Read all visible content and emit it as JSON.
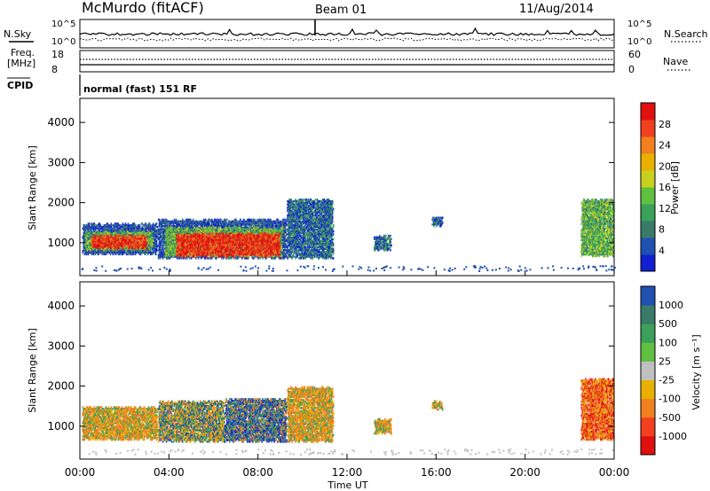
{
  "header": {
    "station": "McMurdo (fitACF)",
    "beam": "Beam 01",
    "date": "11/Aug/2014"
  },
  "nsky_panel": {
    "left_label": "N.Sky",
    "right_label": "N.Search",
    "left_ticks": [
      "10^5",
      "10^0"
    ],
    "right_ticks": [
      "10^5",
      "10^0"
    ]
  },
  "freq_panel": {
    "left_label": "Freq.",
    "left_unit": "[MHz]",
    "right_label": "Nave",
    "left_ticks": [
      "18",
      "8"
    ],
    "right_ticks": [
      "60",
      "0"
    ],
    "freq_mhz": 11.5,
    "nave": 12
  },
  "cpid_panel": {
    "label": "CPID",
    "text": "normal (fast) 151 RF"
  },
  "colors": {
    "dark_blue": "#1020d0",
    "mid_blue": "#2050b0",
    "blue_green": "#3a7a6a",
    "green": "#3aa05a",
    "light_green": "#60c040",
    "yellow": "#c8d020",
    "gold": "#e8b000",
    "orange": "#f08020",
    "red_orange": "#f04020",
    "red": "#e01010",
    "grey": "#c0c0c0"
  },
  "chart_data": [
    {
      "type": "heatmap",
      "name": "power",
      "ylabel": "Slant Range [km]",
      "colorbar_label": "Power [dB]",
      "colorbar_ticks": [
        "4",
        "8",
        "12",
        "16",
        "20",
        "24",
        "28"
      ],
      "ylim": [
        180,
        4600
      ],
      "yticks": [
        "1000",
        "2000",
        "3000",
        "4000"
      ],
      "xlim_hours": [
        0,
        24
      ],
      "regions": [
        {
          "t0": 0.1,
          "t1": 3.5,
          "r0": 700,
          "r1": 1500,
          "level": "edge"
        },
        {
          "t0": 0.2,
          "t1": 3.3,
          "r0": 800,
          "r1": 1300,
          "level": "mid"
        },
        {
          "t0": 0.5,
          "t1": 3.0,
          "r0": 850,
          "r1": 1200,
          "level": "high"
        },
        {
          "t0": 3.5,
          "t1": 9.3,
          "r0": 600,
          "r1": 1600,
          "level": "edge"
        },
        {
          "t0": 3.8,
          "t1": 9.1,
          "r0": 650,
          "r1": 1400,
          "level": "mid"
        },
        {
          "t0": 4.3,
          "t1": 9.0,
          "r0": 650,
          "r1": 1250,
          "level": "high"
        },
        {
          "t0": 9.3,
          "t1": 11.4,
          "r0": 600,
          "r1": 2100,
          "level": "low"
        },
        {
          "t0": 13.2,
          "t1": 14.0,
          "r0": 800,
          "r1": 1200,
          "level": "low"
        },
        {
          "t0": 15.8,
          "t1": 16.3,
          "r0": 1400,
          "r1": 1650,
          "level": "low"
        },
        {
          "t0": 22.5,
          "t1": 24.0,
          "r0": 650,
          "r1": 2100,
          "level": "mid"
        }
      ]
    },
    {
      "type": "heatmap",
      "name": "velocity",
      "ylabel": "Slant Range [km]",
      "colorbar_label": "Velocity [m s⁻¹]",
      "colorbar_ticks": [
        "-1000",
        "-500",
        "-100",
        "-25",
        "25",
        "100",
        "500",
        "1000"
      ],
      "ylim": [
        180,
        4600
      ],
      "yticks": [
        "1000",
        "2000",
        "3000",
        "4000"
      ],
      "xlim_hours": [
        0,
        24
      ],
      "xticks": [
        "00:00",
        "04:00",
        "08:00",
        "12:00",
        "16:00",
        "20:00",
        "00:00"
      ],
      "xlabel": "Time UT",
      "regions": [
        {
          "t0": 0.1,
          "t1": 3.5,
          "r0": 650,
          "r1": 1500,
          "level": "away"
        },
        {
          "t0": 3.5,
          "t1": 6.5,
          "r0": 600,
          "r1": 1650,
          "level": "mixed"
        },
        {
          "t0": 6.5,
          "t1": 9.3,
          "r0": 600,
          "r1": 1700,
          "level": "toward"
        },
        {
          "t0": 9.3,
          "t1": 11.4,
          "r0": 600,
          "r1": 2000,
          "level": "away"
        },
        {
          "t0": 13.2,
          "t1": 14.0,
          "r0": 800,
          "r1": 1200,
          "level": "away"
        },
        {
          "t0": 15.8,
          "t1": 16.3,
          "r0": 1400,
          "r1": 1650,
          "level": "away"
        },
        {
          "t0": 22.5,
          "t1": 24.0,
          "r0": 650,
          "r1": 2200,
          "level": "away_strong"
        }
      ]
    }
  ]
}
